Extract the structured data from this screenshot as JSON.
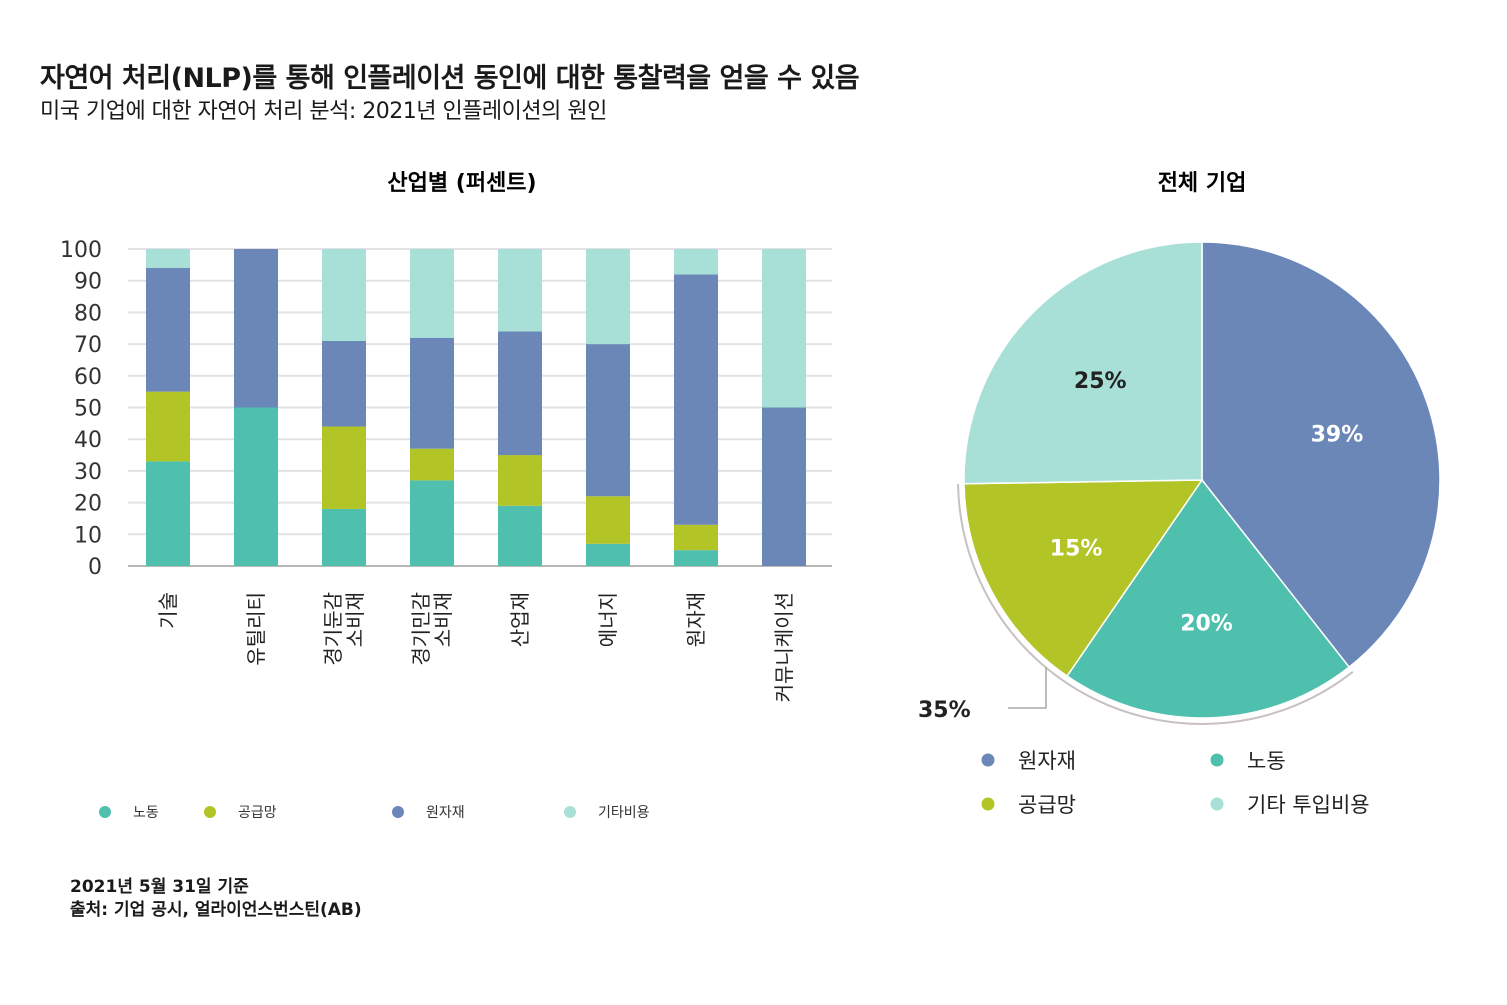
{
  "title": "자연어 처리(NLP)를 통해 인플레이션 동인에 대한 통찰력을 얻을 수 있음",
  "subtitle": "미국 기업에 대한 자연어 처리 분석: 2021년 인플레이션의 원인",
  "footnotes": [
    "2021년 5월 31일 기준",
    "출처: 기업 공시, 얼라이언스번스틴(AB)"
  ],
  "colors": {
    "노동": "#4fbfae",
    "공급망": "#b2c426",
    "원자재": "#6a87b8",
    "기타": "#a8e0d8"
  },
  "chart_data": [
    {
      "type": "bar",
      "stacked": true,
      "title": "산업별 (퍼센트)",
      "categories": [
        [
          "기술"
        ],
        [
          "유틸리티"
        ],
        [
          "경기둔감",
          "소비재"
        ],
        [
          "경기민감",
          "소비재"
        ],
        [
          "산업재"
        ],
        [
          "에너지"
        ],
        [
          "원자재"
        ],
        [
          "커뮤니케이션"
        ]
      ],
      "series": [
        {
          "name": "노동",
          "color": "#4fbfae",
          "values": [
            33,
            50,
            18,
            27,
            19,
            7,
            5,
            0
          ]
        },
        {
          "name": "공급망",
          "color": "#b2c426",
          "values": [
            22,
            0,
            26,
            10,
            16,
            15,
            8,
            0
          ]
        },
        {
          "name": "원자재",
          "color": "#6a87b8",
          "values": [
            39,
            50,
            27,
            35,
            39,
            48,
            79,
            50
          ]
        },
        {
          "name": "기타비용",
          "color": "#a8e0d8",
          "values": [
            6,
            0,
            29,
            28,
            26,
            30,
            8,
            50
          ]
        }
      ],
      "ylim": [
        0,
        100
      ],
      "yticks": [
        0,
        10,
        20,
        30,
        40,
        50,
        60,
        70,
        80,
        90,
        100
      ],
      "grid": true,
      "legend_placement": "bottom"
    },
    {
      "type": "pie",
      "title": "전체 기업",
      "slices": [
        {
          "name": "원자재",
          "value": 39,
          "label": "39%",
          "color": "#6a87b8"
        },
        {
          "name": "노동",
          "value": 20,
          "label": "20%",
          "color": "#4fbfae"
        },
        {
          "name": "공급망",
          "value": 15,
          "label": "15%",
          "color": "#b2c426"
        },
        {
          "name": "기타 투입비용",
          "value": 25,
          "label": "25%",
          "color": "#a8e0d8"
        }
      ],
      "callout": {
        "label": "35%",
        "covers": [
          "노동",
          "공급망"
        ]
      },
      "legend": [
        "원자재",
        "노동",
        "공급망",
        "기타 투입비용"
      ],
      "legend_placement": "bottom"
    }
  ]
}
